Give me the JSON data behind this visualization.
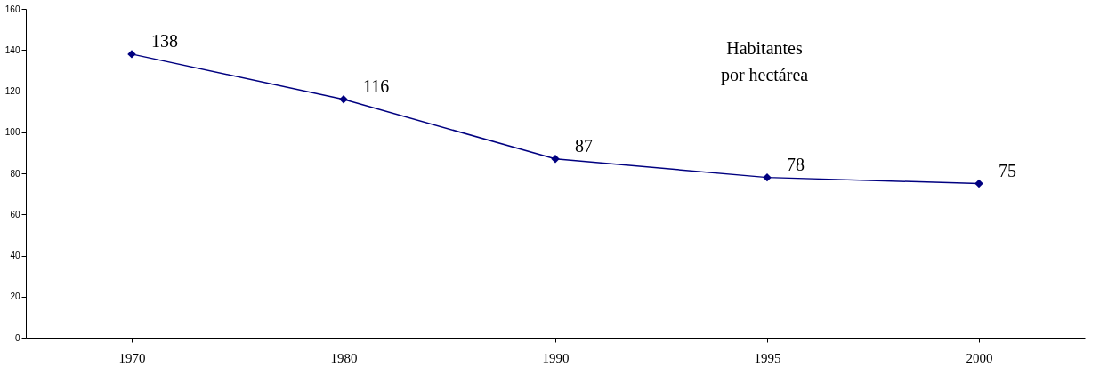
{
  "chart_data": {
    "type": "line",
    "categories": [
      "1970",
      "1980",
      "1990",
      "1995",
      "2000"
    ],
    "series": [
      {
        "color": "#000080",
        "values": [
          138,
          116,
          87,
          78,
          75
        ]
      }
    ],
    "ylim": [
      0,
      160
    ],
    "yticks": [
      0,
      20,
      40,
      60,
      80,
      100,
      120,
      140,
      160
    ],
    "marker": "diamond",
    "line_style": "solid",
    "grid": false,
    "legend": false,
    "data_labels": true,
    "annotations": [
      "Habitantes\npor hectárea"
    ]
  }
}
